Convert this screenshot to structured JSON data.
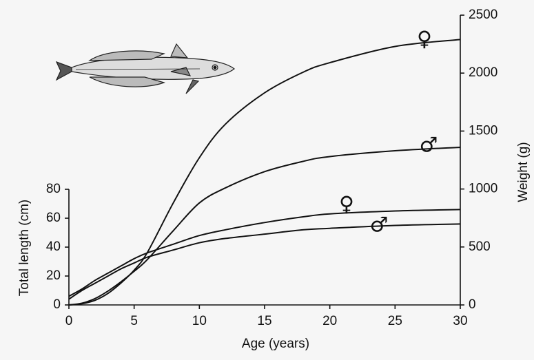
{
  "chart_data": {
    "type": "line",
    "xlabel": "Age (years)",
    "ylabel": "Total length (cm)",
    "y2label": "Weight (g)",
    "x": [
      0,
      1,
      2,
      3,
      4,
      5,
      6,
      8,
      10,
      12,
      15,
      18,
      20,
      25,
      30
    ],
    "series": [
      {
        "name": "♀",
        "color": "#111111",
        "values": [
          6,
          11,
          17,
          22,
          27,
          32,
          36,
          42,
          48,
          52,
          57,
          61,
          63,
          65,
          66
        ]
      },
      {
        "name": "♂",
        "color": "#111111",
        "values": [
          4,
          10,
          15,
          20,
          25,
          29,
          33,
          38,
          43,
          46,
          49,
          52,
          53,
          55,
          56
        ]
      },
      {
        "name": "♀",
        "color": "#111111",
        "axis": "y2",
        "values": [
          0,
          10,
          40,
          100,
          190,
          300,
          450,
          880,
          1270,
          1560,
          1830,
          2010,
          2090,
          2230,
          2290
        ]
      },
      {
        "name": "♂",
        "color": "#111111",
        "axis": "y2",
        "values": [
          0,
          15,
          55,
          120,
          200,
          290,
          390,
          640,
          880,
          1010,
          1150,
          1240,
          1280,
          1330,
          1360
        ]
      }
    ],
    "xlim": [
      0,
      30
    ],
    "xticks": [
      0,
      5,
      10,
      15,
      20,
      25,
      30
    ],
    "ylim": [
      0,
      80
    ],
    "yticks": [
      0,
      20,
      40,
      60,
      80
    ],
    "y2lim": [
      0,
      2500
    ],
    "y2ticks": [
      0,
      500,
      1000,
      1500,
      2000,
      2500
    ]
  }
}
